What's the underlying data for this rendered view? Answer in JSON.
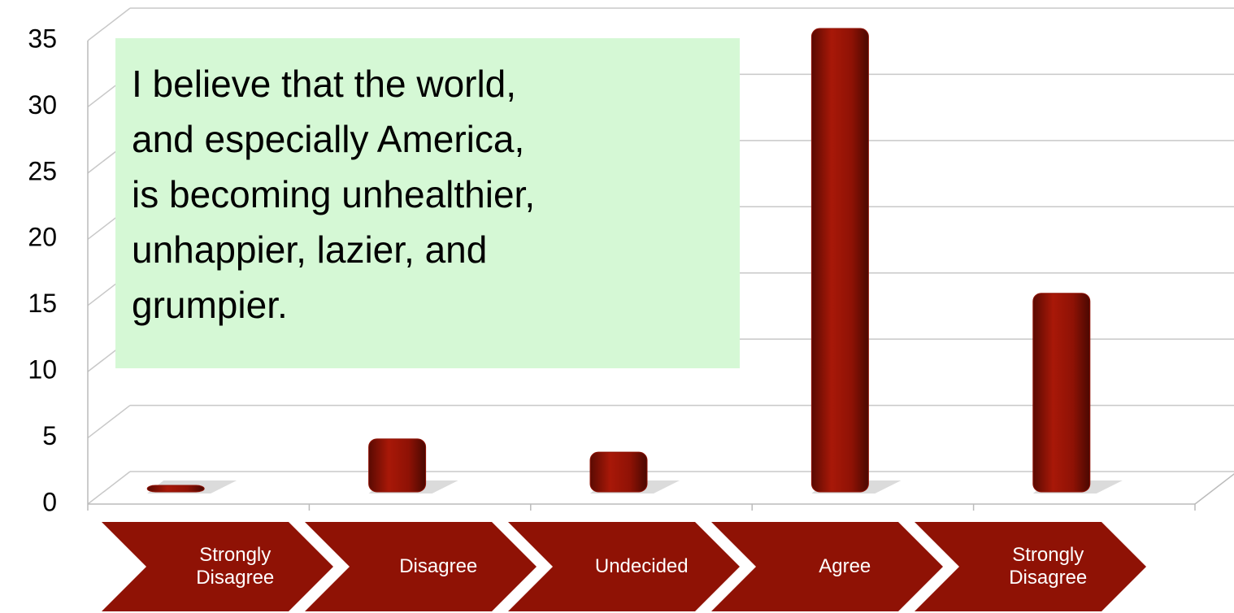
{
  "chart_data": {
    "type": "bar",
    "annotation": [
      "I believe that the world,",
      "and especially America,",
      "is becoming unhealthier,",
      "unhappier, lazier, and",
      "grumpier."
    ],
    "categories": [
      "Strongly Disagree",
      "Disagree",
      "Undecided",
      "Agree",
      "Strongly Disagree"
    ],
    "values": [
      0,
      4,
      3,
      35,
      15
    ],
    "color": "#8f1205",
    "label_color": "#8f1205",
    "ylim": [
      0,
      35
    ],
    "yticks": [
      0,
      5,
      10,
      15,
      20,
      25,
      30,
      35
    ],
    "grid": true
  }
}
